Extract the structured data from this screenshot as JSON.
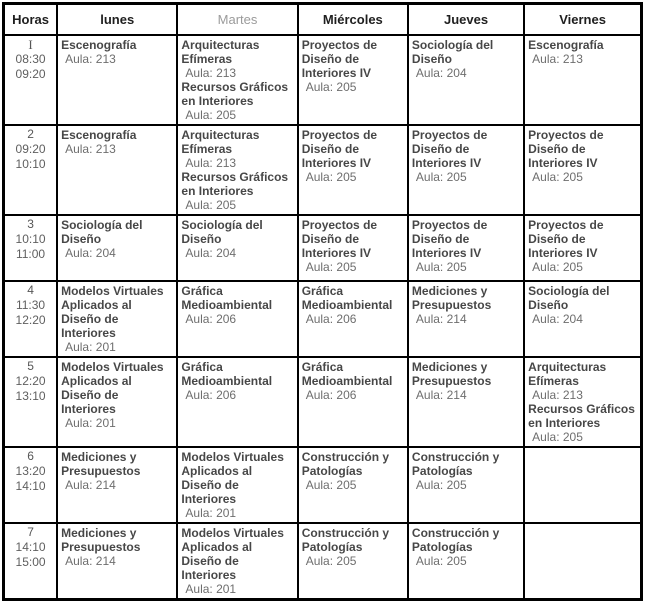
{
  "colors": {
    "border": "#000000",
    "header_text": "#1f1f1f",
    "muted_header_text": "#9b9b9b",
    "subject_text": "#474747",
    "detail_text": "#6e6e6e",
    "background": "#ffffff"
  },
  "table": {
    "columns": [
      {
        "key": "horas",
        "label": "Horas",
        "muted": false
      },
      {
        "key": "lunes",
        "label": "lunes",
        "muted": false
      },
      {
        "key": "martes",
        "label": "Martes",
        "muted": true
      },
      {
        "key": "miercoles",
        "label": "Miércoles",
        "muted": false
      },
      {
        "key": "jueves",
        "label": "Jueves",
        "muted": false
      },
      {
        "key": "viernes",
        "label": "Viernes",
        "muted": false
      }
    ],
    "rows": [
      {
        "period": "I",
        "start": "08:30",
        "end": "09:20",
        "cells": {
          "lunes": [
            {
              "subject": "Escenografía",
              "aula": "Aula: 213"
            }
          ],
          "martes": [
            {
              "subject": "Arquitecturas Efímeras",
              "aula": "Aula: 213"
            },
            {
              "subject": "Recursos Gráficos en Interiores",
              "aula": "Aula: 205"
            }
          ],
          "miercoles": [
            {
              "subject": "Proyectos de Diseño de Interiores IV",
              "aula": "Aula: 205"
            }
          ],
          "jueves": [
            {
              "subject": "Sociología del Diseño",
              "aula": "Aula: 204"
            }
          ],
          "viernes": [
            {
              "subject": "Escenografía",
              "aula": "Aula: 213"
            }
          ]
        }
      },
      {
        "period": "2",
        "start": "09:20",
        "end": "10:10",
        "cells": {
          "lunes": [
            {
              "subject": "Escenografía",
              "aula": "Aula: 213"
            }
          ],
          "martes": [
            {
              "subject": "Arquitecturas Efímeras",
              "aula": "Aula: 213"
            },
            {
              "subject": "Recursos Gráficos en Interiores",
              "aula": "Aula: 205"
            }
          ],
          "miercoles": [
            {
              "subject": "Proyectos de Diseño de Interiores IV",
              "aula": "Aula: 205"
            }
          ],
          "jueves": [
            {
              "subject": "Proyectos de Diseño de Interiores IV",
              "aula": "Aula: 205"
            }
          ],
          "viernes": [
            {
              "subject": "Proyectos de Diseño de Interiores IV",
              "aula": "Aula: 205"
            }
          ]
        }
      },
      {
        "period": "3",
        "start": "10:10",
        "end": "11:00",
        "cells": {
          "lunes": [
            {
              "subject": "Sociología del Diseño",
              "aula": "Aula: 204"
            }
          ],
          "martes": [
            {
              "subject": "Sociología del Diseño",
              "aula": "Aula: 204"
            }
          ],
          "miercoles": [
            {
              "subject": "Proyectos de Diseño de Interiores IV",
              "aula": "Aula: 205"
            }
          ],
          "jueves": [
            {
              "subject": "Proyectos de Diseño de Interiores IV",
              "aula": "Aula: 205"
            }
          ],
          "viernes": [
            {
              "subject": "Proyectos de Diseño de Interiores IV",
              "aula": "Aula: 205"
            }
          ]
        }
      },
      {
        "period": "4",
        "start": "11:30",
        "end": "12:20",
        "cells": {
          "lunes": [
            {
              "subject": "Modelos Virtuales Aplicados al Diseño de Interiores",
              "aula": "Aula: 201"
            }
          ],
          "martes": [
            {
              "subject": "Gráfica Medioambiental",
              "aula": "Aula: 206"
            }
          ],
          "miercoles": [
            {
              "subject": "Gráfica Medioambiental",
              "aula": "Aula: 206"
            }
          ],
          "jueves": [
            {
              "subject": "Mediciones y Presupuestos",
              "aula": "Aula: 214"
            }
          ],
          "viernes": [
            {
              "subject": "Sociología del Diseño",
              "aula": "Aula: 204"
            }
          ]
        }
      },
      {
        "period": "5",
        "start": "12:20",
        "end": "13:10",
        "cells": {
          "lunes": [
            {
              "subject": "Modelos Virtuales Aplicados al Diseño de Interiores",
              "aula": "Aula: 201"
            }
          ],
          "martes": [
            {
              "subject": "Gráfica Medioambiental",
              "aula": "Aula: 206"
            }
          ],
          "miercoles": [
            {
              "subject": "Gráfica Medioambiental",
              "aula": "Aula: 206"
            }
          ],
          "jueves": [
            {
              "subject": "Mediciones y Presupuestos",
              "aula": "Aula: 214"
            }
          ],
          "viernes": [
            {
              "subject": "Arquitecturas Efímeras",
              "aula": "Aula: 213"
            },
            {
              "subject": "Recursos Gráficos en Interiores",
              "aula": "Aula: 205"
            }
          ]
        }
      },
      {
        "period": "6",
        "start": "13:20",
        "end": "14:10",
        "cells": {
          "lunes": [
            {
              "subject": "Mediciones y Presupuestos",
              "aula": "Aula: 214"
            }
          ],
          "martes": [
            {
              "subject": "Modelos Virtuales Aplicados al Diseño de Interiores",
              "aula": "Aula: 201"
            }
          ],
          "miercoles": [
            {
              "subject": "Construcción y Patologías",
              "aula": "Aula: 205"
            }
          ],
          "jueves": [
            {
              "subject": "Construcción y Patologías",
              "aula": "Aula: 205"
            }
          ],
          "viernes": []
        }
      },
      {
        "period": "7",
        "start": "14:10",
        "end": "15:00",
        "cells": {
          "lunes": [
            {
              "subject": "Mediciones y Presupuestos",
              "aula": "Aula: 214"
            }
          ],
          "martes": [
            {
              "subject": "Modelos Virtuales Aplicados al Diseño de Interiores",
              "aula": "Aula: 201"
            }
          ],
          "miercoles": [
            {
              "subject": "Construcción y Patologías",
              "aula": "Aula: 205"
            }
          ],
          "jueves": [
            {
              "subject": "Construcción y Patologías",
              "aula": "Aula: 205"
            }
          ],
          "viernes": []
        }
      }
    ]
  }
}
